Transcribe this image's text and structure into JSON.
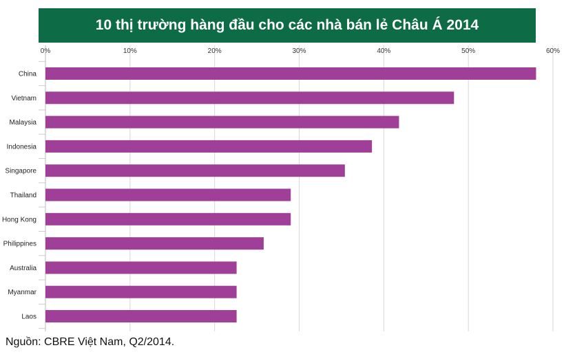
{
  "chart_data": {
    "type": "bar",
    "orientation": "horizontal",
    "title": "10 thị trường hàng đầu cho các nhà bán lẻ Châu Á 2014",
    "categories": [
      "China",
      "Vietnam",
      "Malaysia",
      "Indonesia",
      "Singapore",
      "Thailand",
      "Hong Kong",
      "Philippines",
      "Australia",
      "Myanmar",
      "Laos"
    ],
    "values": [
      58,
      48.3,
      41.8,
      38.6,
      35.4,
      29,
      29,
      25.8,
      22.6,
      22.6,
      22.6
    ],
    "xlim": [
      0,
      60
    ],
    "xticks": [
      "0%",
      "10%",
      "20%",
      "30%",
      "40%",
      "50%",
      "60%"
    ],
    "grid": true,
    "bar_color": "#a03f97"
  },
  "source_note": "Nguồn: CBRE Việt Nam, Q2/2014."
}
